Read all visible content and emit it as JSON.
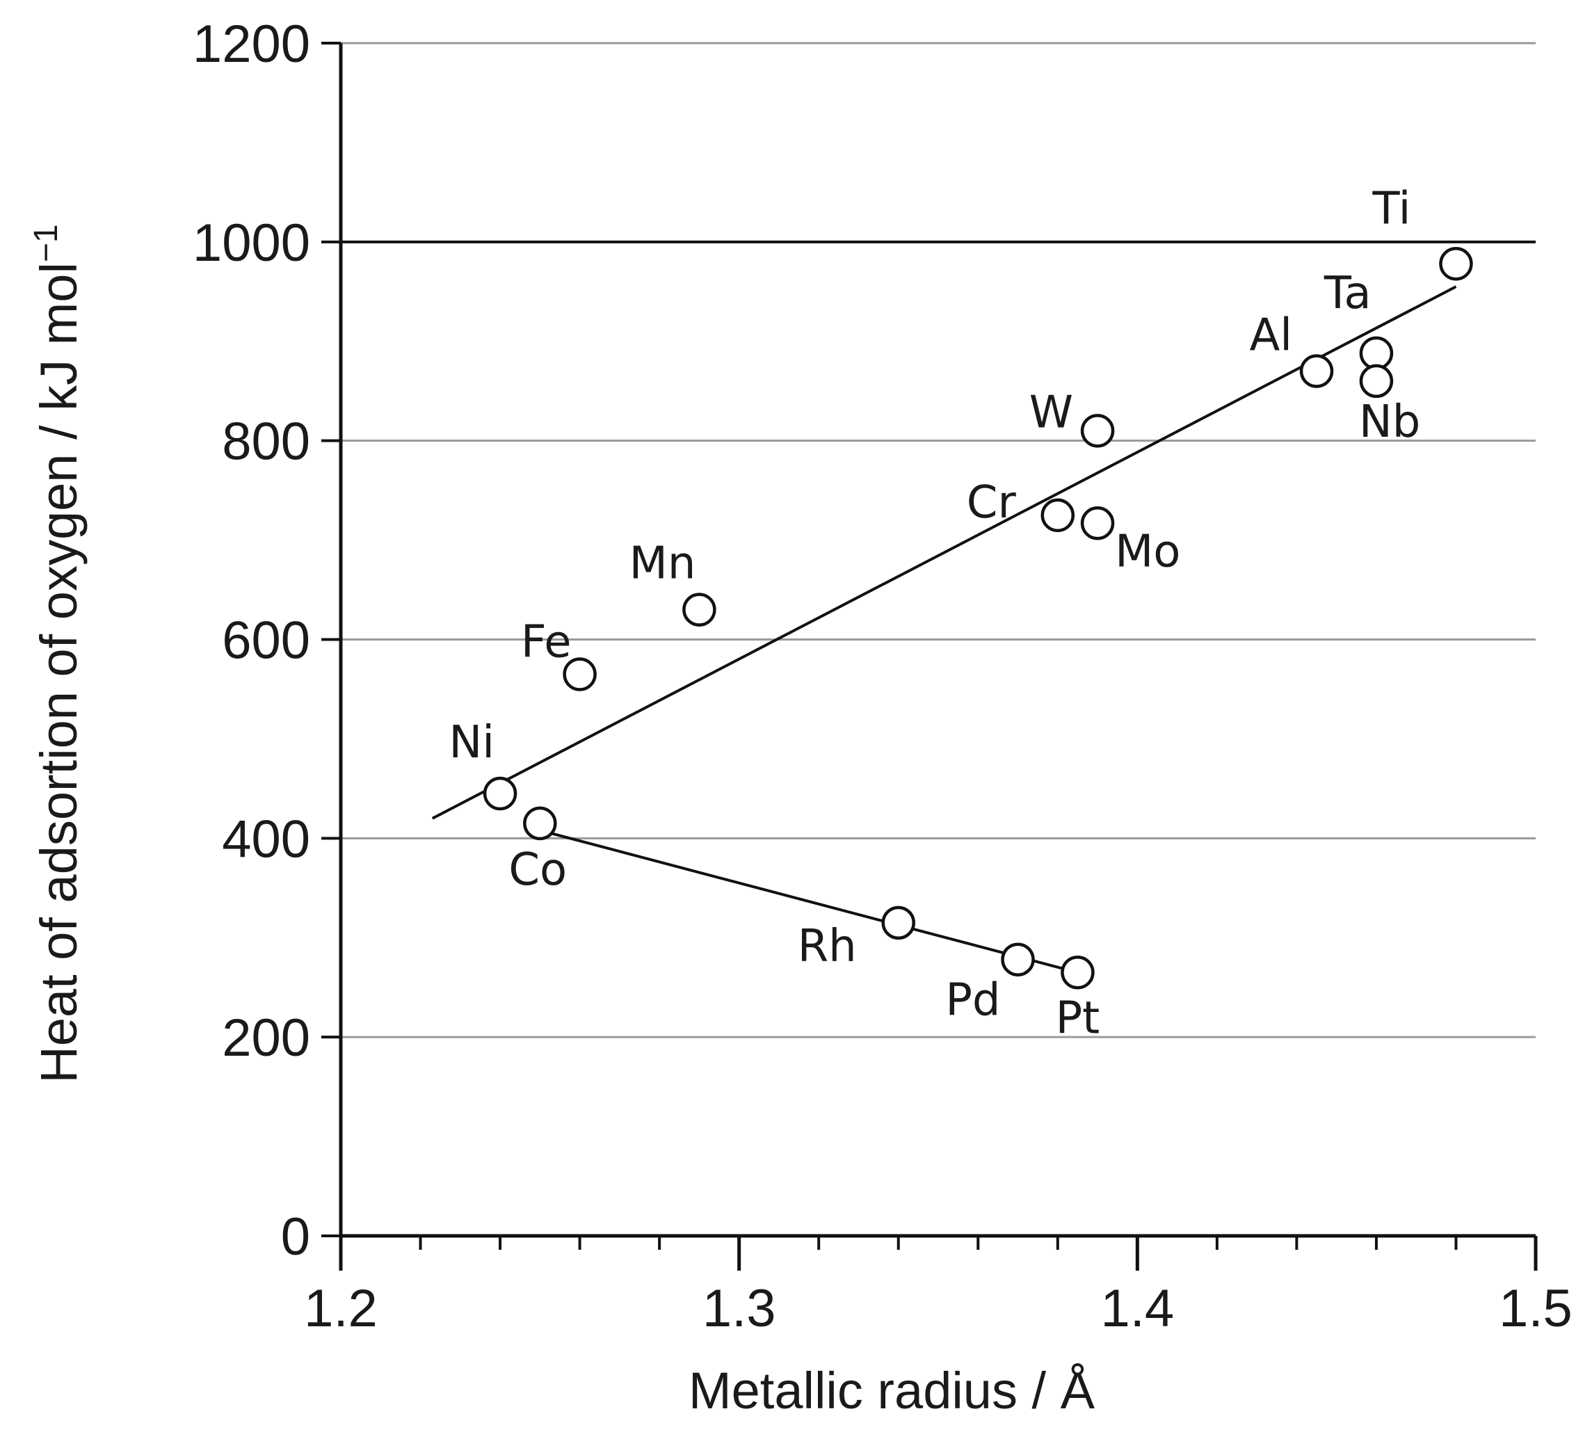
{
  "chart_data": {
    "type": "scatter",
    "xlabel": "Metallic radius / Å",
    "ylabel": "Heat of adsortion of oxygen / kJ mol",
    "ylabel_superscript": "−1",
    "xlim": [
      1.2,
      1.5
    ],
    "ylim": [
      0,
      1200
    ],
    "x_ticks": [
      "1.2",
      "1.3",
      "1.4",
      "1.5"
    ],
    "y_ticks": [
      "0",
      "200",
      "400",
      "600",
      "800",
      "1000",
      "1200"
    ],
    "grid": "horizontal",
    "points": [
      {
        "label": "Ni",
        "x": 1.24,
        "y": 445
      },
      {
        "label": "Co",
        "x": 1.25,
        "y": 415
      },
      {
        "label": "Fe",
        "x": 1.26,
        "y": 565
      },
      {
        "label": "Mn",
        "x": 1.29,
        "y": 630
      },
      {
        "label": "Rh",
        "x": 1.34,
        "y": 315
      },
      {
        "label": "Pd",
        "x": 1.37,
        "y": 278
      },
      {
        "label": "Pt",
        "x": 1.385,
        "y": 265
      },
      {
        "label": "Cr",
        "x": 1.38,
        "y": 725
      },
      {
        "label": "Mo",
        "x": 1.39,
        "y": 717
      },
      {
        "label": "W",
        "x": 1.39,
        "y": 810
      },
      {
        "label": "Al",
        "x": 1.445,
        "y": 870
      },
      {
        "label": "Ta",
        "x": 1.46,
        "y": 888
      },
      {
        "label": "Nb",
        "x": 1.46,
        "y": 860
      },
      {
        "label": "Ti",
        "x": 1.48,
        "y": 978
      }
    ],
    "fit_lines": [
      {
        "x": [
          1.223,
          1.48
        ],
        "y": [
          420,
          955
        ]
      },
      {
        "x": [
          1.25,
          1.385
        ],
        "y": [
          408,
          265
        ]
      }
    ]
  }
}
